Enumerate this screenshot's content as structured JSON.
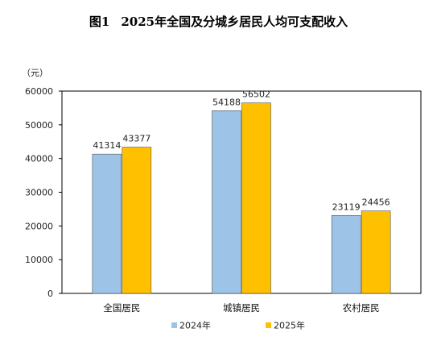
{
  "figure_label": "图1",
  "chart_data": {
    "type": "bar",
    "title": "2025年全国及分城乡居民人均可支配收入",
    "ylabel": "（元）",
    "xlabel": "",
    "categories": [
      "全国居民",
      "城镇居民",
      "农村居民"
    ],
    "series": [
      {
        "name": "2024年",
        "values": [
          41314,
          54188,
          23119
        ],
        "color": "#9DC3E6"
      },
      {
        "name": "2025年",
        "values": [
          43377,
          56502,
          24456
        ],
        "color": "#FFC000"
      }
    ],
    "ylim": [
      0,
      60000
    ],
    "yticks": [
      0,
      10000,
      20000,
      30000,
      40000,
      50000,
      60000
    ],
    "grid": false,
    "legend": "bottom",
    "data_labels": true
  }
}
